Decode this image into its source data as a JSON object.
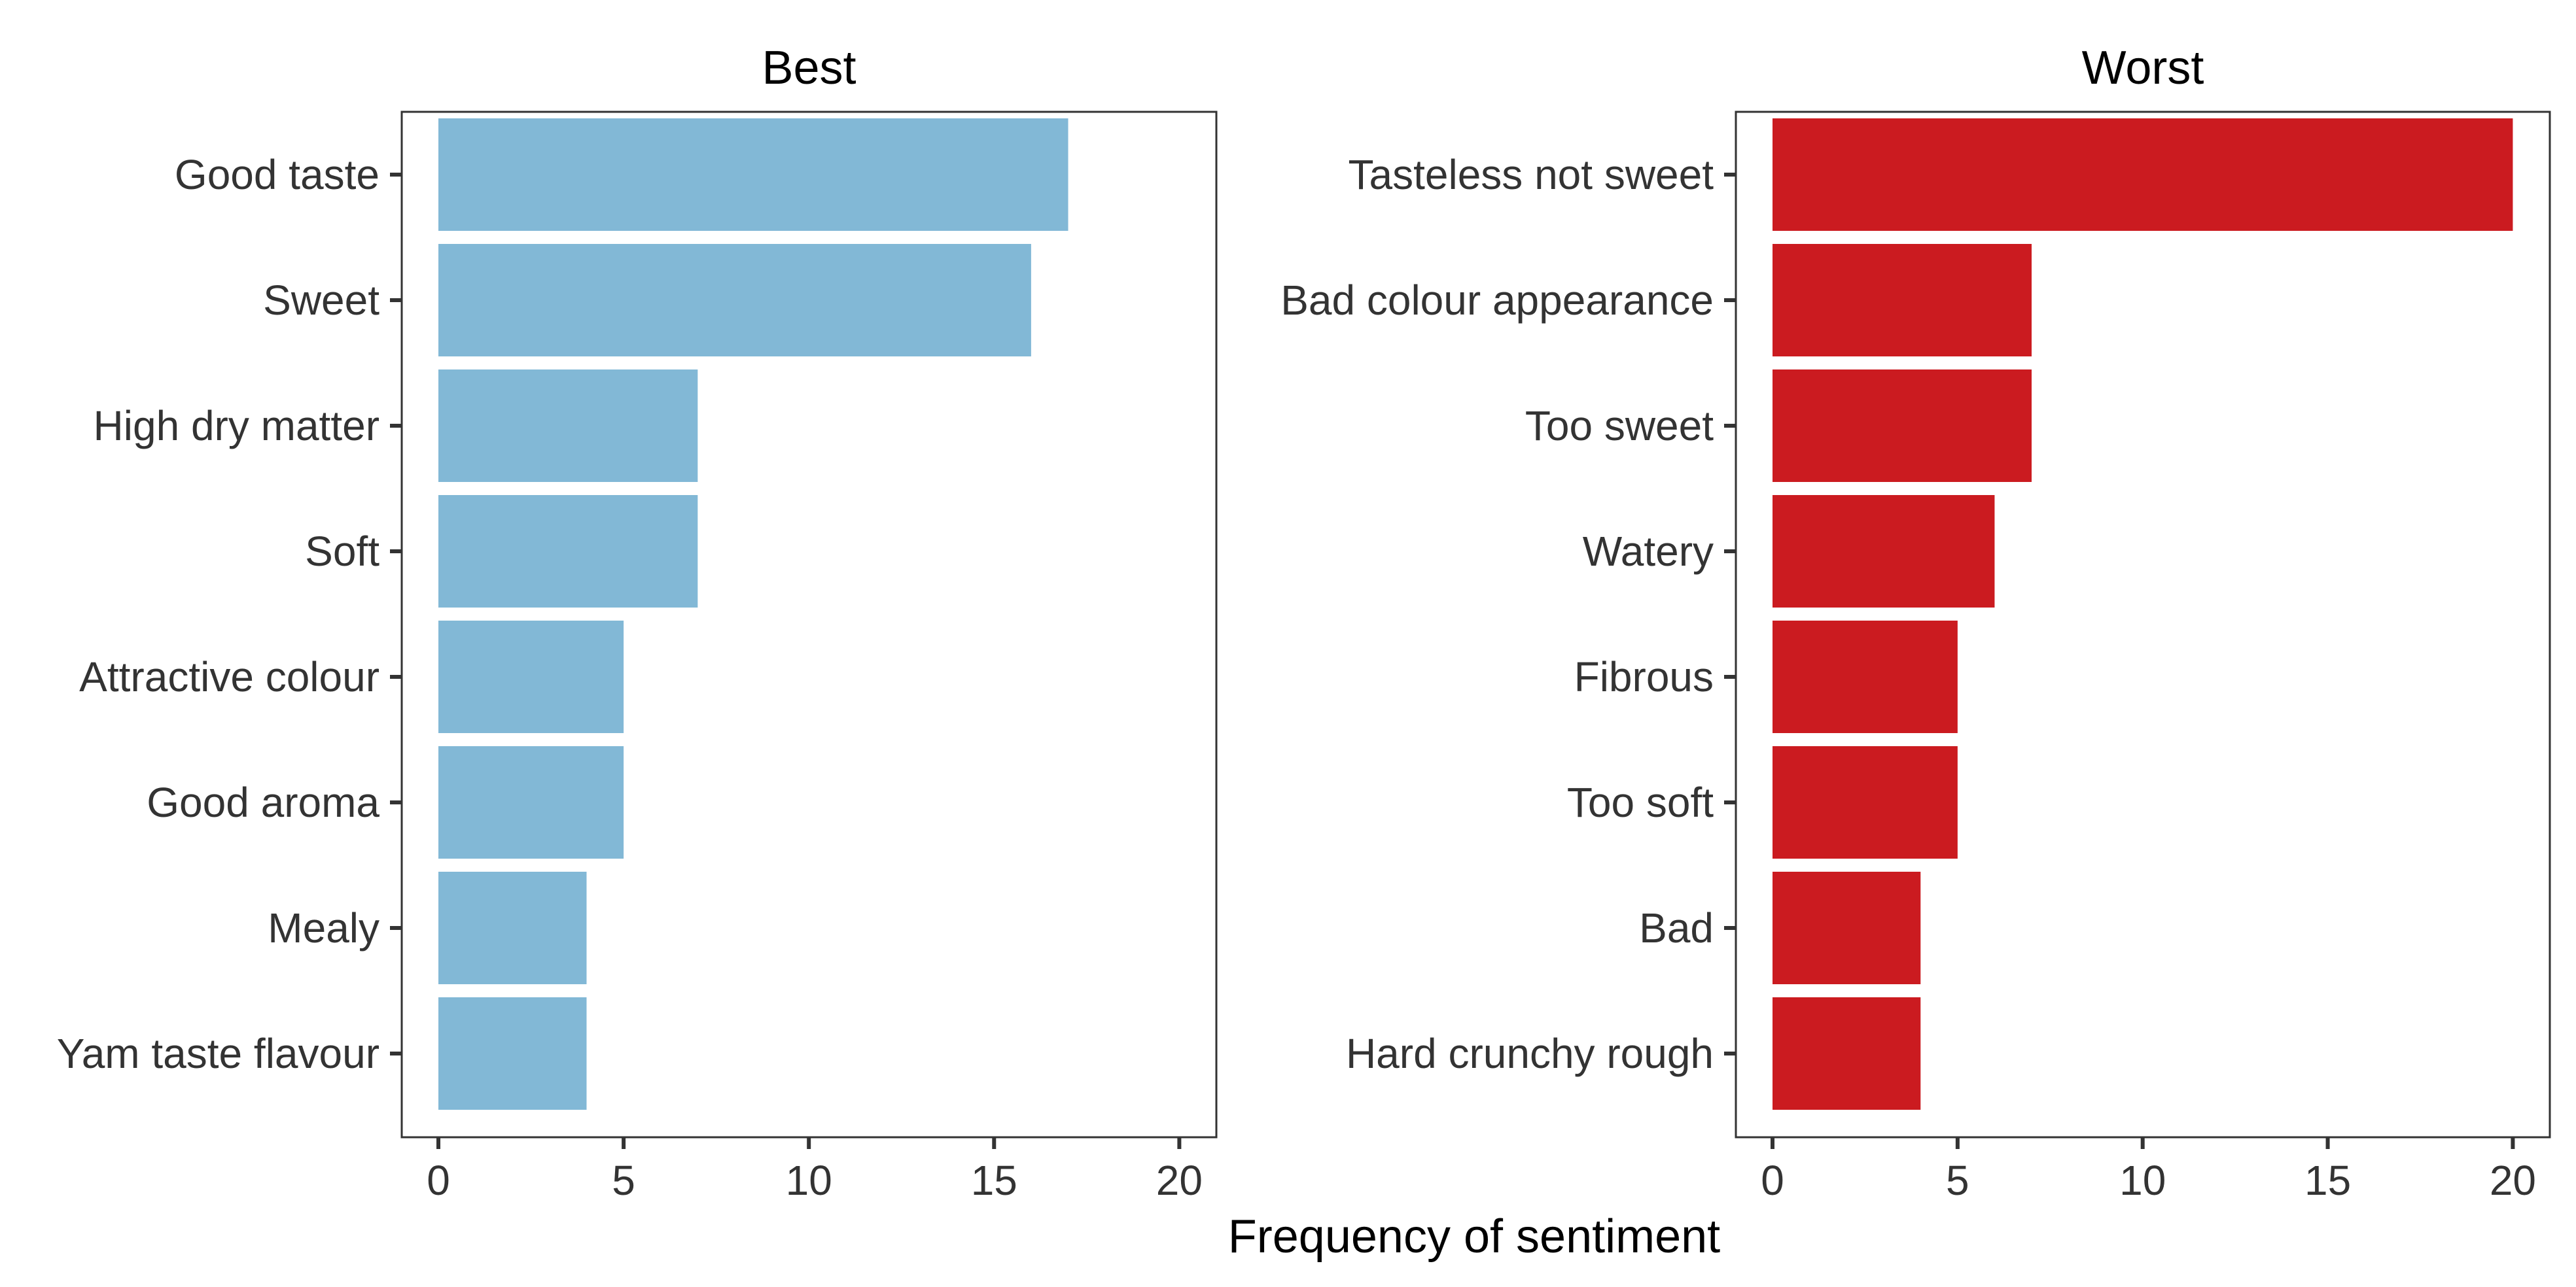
{
  "chart_data": {
    "type": "bar",
    "orientation": "horizontal",
    "xlabel": "Frequency of sentiment",
    "xlim": [
      0,
      21
    ],
    "xticks": [
      0,
      5,
      10,
      15,
      20
    ],
    "grid": false,
    "panels": [
      {
        "title": "Best",
        "color": "#82B8D6",
        "categories": [
          "Good taste",
          "Sweet",
          "High dry matter",
          "Soft",
          "Attractive colour",
          "Good aroma",
          "Mealy",
          "Yam taste flavour"
        ],
        "values": [
          17,
          16,
          7,
          7,
          5,
          5,
          4,
          4
        ]
      },
      {
        "title": "Worst",
        "color": "#CB1B20",
        "categories": [
          "Tasteless not sweet",
          "Bad colour appearance",
          "Too sweet",
          "Watery",
          "Fibrous",
          "Too soft",
          "Bad",
          "Hard crunchy rough"
        ],
        "values": [
          20,
          7,
          7,
          6,
          5,
          5,
          4,
          4
        ]
      }
    ]
  }
}
